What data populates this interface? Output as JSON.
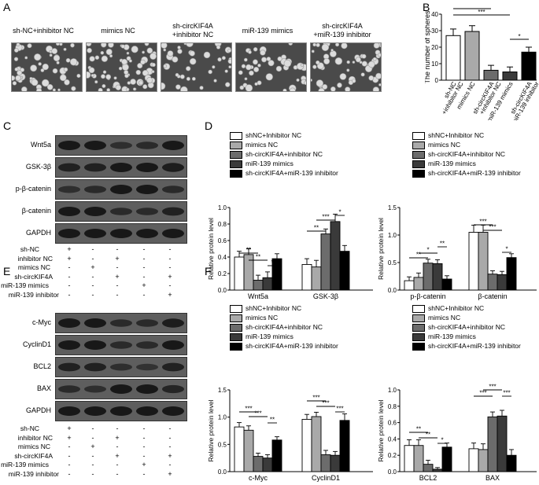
{
  "panels": {
    "A": "A",
    "B": "B",
    "C": "C",
    "D": "D",
    "E": "E",
    "F": "F"
  },
  "colors": {
    "g1": "#ffffff",
    "g2": "#a9a9a9",
    "g3": "#6c6c6c",
    "g4": "#3a3a3a",
    "g5": "#000000"
  },
  "panelA": {
    "labels": [
      "sh-NC+inhibitor NC",
      "mimics NC",
      "sh-circKIF4A\n+inhibitor NC",
      "miR-139 mimics",
      "sh-circKIF4A\n+miR-139 inhibitor"
    ]
  },
  "legend": {
    "items": [
      "shNC+Inhibitor NC",
      "mimics NC",
      "sh-circKIF4A+inhibitor NC",
      "miR-139 mimics",
      "sh-circKIF4A+miR-139 inhibitor"
    ]
  },
  "blotC": {
    "proteins": [
      "Wnt5a",
      "GSK-3β",
      "p-β-catenin",
      "β-catenin",
      "GAPDH"
    ]
  },
  "blotE": {
    "proteins": [
      "c-Myc",
      "CyclinD1",
      "BCL2",
      "BAX",
      "GAPDH"
    ]
  },
  "conditions": {
    "names": [
      "sh-NC",
      "inhibitor NC",
      "mimics NC",
      "sh-circKIF4A",
      "miR-139 mimics",
      "miR-139 inhibitor"
    ],
    "signs": [
      [
        "+",
        "-",
        "-",
        "-",
        "-"
      ],
      [
        "+",
        "-",
        "+",
        "-",
        "-"
      ],
      [
        "-",
        "+",
        "-",
        "-",
        "-"
      ],
      [
        "-",
        "-",
        "+",
        "-",
        "+"
      ],
      [
        "-",
        "-",
        "-",
        "+",
        "-"
      ],
      [
        "-",
        "-",
        "-",
        "-",
        "+"
      ]
    ]
  },
  "chart_data": [
    {
      "id": "B",
      "type": "bar",
      "ylabel": "The number of spheres",
      "ylim": [
        0,
        40
      ],
      "yticks": [
        0,
        10,
        20,
        30,
        40
      ],
      "categories": [
        "sh-NC\n+inhibitor NC",
        "mimics NC",
        "sh-circKIF4A\n+inhibitor NC",
        "miR-139 mimics",
        "sh-circKIF4A\n+miR-139 inhibitor"
      ],
      "values": [
        27,
        29.5,
        6,
        5,
        17
      ],
      "errors": [
        4,
        3.5,
        3,
        3,
        3
      ],
      "sig": [
        {
          "from": 0,
          "to": 2,
          "label": "***"
        },
        {
          "from": 0,
          "to": 3,
          "label": "***"
        },
        {
          "from": 3,
          "to": 4,
          "label": "*"
        }
      ]
    },
    {
      "id": "D1",
      "type": "bar",
      "ylabel": "Relative protein level",
      "ylim": [
        0,
        1.0
      ],
      "yticks": [
        "0.0",
        "0.2",
        "0.4",
        "0.6",
        "0.8",
        "1.0"
      ],
      "groups": [
        "Wnt5a",
        "GSK-3β"
      ],
      "values": [
        [
          0.4,
          0.43,
          0.12,
          0.15,
          0.38
        ],
        [
          0.31,
          0.28,
          0.68,
          0.83,
          0.47
        ]
      ],
      "errors": [
        [
          0.07,
          0.07,
          0.06,
          0.07,
          0.06
        ],
        [
          0.07,
          0.08,
          0.06,
          0.09,
          0.07
        ]
      ],
      "sig": [
        {
          "g": 0,
          "from": 0,
          "to": 2,
          "label": "**"
        },
        {
          "g": 0,
          "from": 1,
          "to": 3,
          "label": "**"
        },
        {
          "g": 0,
          "from": 3,
          "to": 4,
          "label": "*"
        },
        {
          "g": 1,
          "from": 0,
          "to": 2,
          "label": "**"
        },
        {
          "g": 1,
          "from": 1,
          "to": 3,
          "label": "***"
        },
        {
          "g": 1,
          "from": 3,
          "to": 4,
          "label": "*"
        }
      ]
    },
    {
      "id": "D2",
      "type": "bar",
      "ylabel": "Relative protein level",
      "ylim": [
        0,
        1.5
      ],
      "yticks": [
        "0.0",
        "0.5",
        "1.0",
        "1.5"
      ],
      "groups": [
        "p-β-catenin",
        "β-catenin"
      ],
      "values": [
        [
          0.17,
          0.23,
          0.49,
          0.48,
          0.2
        ],
        [
          1.05,
          1.05,
          0.29,
          0.28,
          0.59
        ]
      ],
      "errors": [
        [
          0.07,
          0.08,
          0.07,
          0.07,
          0.06
        ],
        [
          0.13,
          0.13,
          0.06,
          0.06,
          0.07
        ]
      ],
      "sig": [
        {
          "g": 0,
          "from": 0,
          "to": 2,
          "label": "**"
        },
        {
          "g": 0,
          "from": 1,
          "to": 3,
          "label": "*"
        },
        {
          "g": 0,
          "from": 3,
          "to": 4,
          "label": "**"
        },
        {
          "g": 1,
          "from": 0,
          "to": 2,
          "label": "***"
        },
        {
          "g": 1,
          "from": 1,
          "to": 3,
          "label": "***"
        },
        {
          "g": 1,
          "from": 3,
          "to": 4,
          "label": "*"
        }
      ]
    },
    {
      "id": "F1",
      "type": "bar",
      "ylabel": "Relative protein level",
      "ylim": [
        0,
        1.5
      ],
      "yticks": [
        "0.0",
        "0.5",
        "1.0",
        "1.5"
      ],
      "groups": [
        "c-Myc",
        "CyclinD1"
      ],
      "values": [
        [
          0.82,
          0.76,
          0.28,
          0.25,
          0.58
        ],
        [
          0.96,
          1.01,
          0.31,
          0.3,
          0.94
        ]
      ],
      "errors": [
        [
          0.08,
          0.08,
          0.06,
          0.06,
          0.06
        ],
        [
          0.09,
          0.08,
          0.08,
          0.07,
          0.12
        ]
      ],
      "sig": [
        {
          "g": 0,
          "from": 0,
          "to": 2,
          "label": "***"
        },
        {
          "g": 0,
          "from": 1,
          "to": 3,
          "label": "***"
        },
        {
          "g": 0,
          "from": 3,
          "to": 4,
          "label": "**"
        },
        {
          "g": 1,
          "from": 0,
          "to": 2,
          "label": "***"
        },
        {
          "g": 1,
          "from": 1,
          "to": 3,
          "label": "***"
        },
        {
          "g": 1,
          "from": 3,
          "to": 4,
          "label": "***"
        }
      ]
    },
    {
      "id": "F2",
      "type": "bar",
      "ylabel": "Relative protein level",
      "ylim": [
        0,
        1.0
      ],
      "yticks": [
        "0.0",
        "0.2",
        "0.4",
        "0.6",
        "0.8",
        "1.0"
      ],
      "groups": [
        "BCL2",
        "BAX"
      ],
      "values": [
        [
          0.32,
          0.32,
          0.09,
          0.03,
          0.3
        ],
        [
          0.28,
          0.27,
          0.67,
          0.68,
          0.2
        ]
      ],
      "errors": [
        [
          0.07,
          0.07,
          0.05,
          0.02,
          0.05
        ],
        [
          0.07,
          0.07,
          0.06,
          0.07,
          0.07
        ]
      ],
      "sig": [
        {
          "g": 0,
          "from": 0,
          "to": 2,
          "label": "**"
        },
        {
          "g": 0,
          "from": 1,
          "to": 3,
          "label": "**"
        },
        {
          "g": 0,
          "from": 3,
          "to": 4,
          "label": "*"
        },
        {
          "g": 1,
          "from": 0,
          "to": 2,
          "label": "***"
        },
        {
          "g": 1,
          "from": 1,
          "to": 3,
          "label": "***"
        },
        {
          "g": 1,
          "from": 3,
          "to": 4,
          "label": "***"
        }
      ]
    }
  ]
}
